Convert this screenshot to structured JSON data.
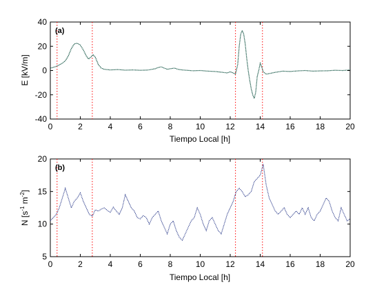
{
  "chart_data": [
    {
      "type": "line",
      "panel_label": "(a)",
      "xlabel": "Tiempo Local [h]",
      "ylabel": "E  [kV/m]",
      "xlim": [
        0,
        20
      ],
      "ylim": [
        -40,
        40
      ],
      "xticks": [
        0,
        2,
        4,
        6,
        8,
        10,
        12,
        14,
        16,
        18,
        20
      ],
      "yticks": [
        -40,
        -20,
        0,
        20,
        40
      ],
      "grid": false,
      "line_color": "#1a5a4a",
      "vlines": [
        0.45,
        2.8,
        12.35,
        14.15
      ],
      "vline_color": "#ff0000",
      "series": [
        {
          "x": [
            0,
            0.3,
            0.5,
            0.8,
            1.0,
            1.2,
            1.4,
            1.6,
            1.8,
            2.0,
            2.2,
            2.4,
            2.55,
            2.7,
            2.85,
            3.0,
            3.2,
            3.4,
            3.6,
            4.0,
            4.5,
            5.0,
            5.5,
            6.0,
            6.5,
            7.0,
            7.2,
            7.4,
            7.6,
            7.8,
            8.0,
            8.3,
            8.5,
            8.8,
            9.0,
            9.5,
            10.0,
            10.5,
            11.0,
            11.5,
            11.8,
            12.0,
            12.2,
            12.35,
            12.5,
            12.6,
            12.7,
            12.8,
            12.9,
            13.0,
            13.1,
            13.2,
            13.3,
            13.4,
            13.5,
            13.6,
            13.7,
            13.8,
            13.9,
            14.0,
            14.1,
            14.2,
            14.3,
            14.4,
            14.6,
            14.8,
            15.0,
            15.5,
            16.0,
            16.5,
            17.0,
            17.5,
            18.0,
            18.5,
            19.0,
            19.5,
            20.0
          ],
          "y": [
            2,
            3,
            4,
            6,
            8,
            12,
            18,
            22,
            22.5,
            21,
            17,
            12,
            9.5,
            11,
            13,
            11,
            5,
            2,
            1,
            0.5,
            0.8,
            0.3,
            0.5,
            0.2,
            0.4,
            1.5,
            2.5,
            3,
            2,
            1,
            1.5,
            2,
            1,
            0.5,
            0.3,
            -0.2,
            0,
            -0.5,
            -0.8,
            -1.5,
            -2,
            -1,
            -2,
            -3,
            5,
            20,
            30,
            33,
            30,
            22,
            10,
            0,
            -8,
            -15,
            -20,
            -23,
            -18,
            -5,
            0,
            6,
            3,
            -1,
            -2,
            -3,
            -2.5,
            -2,
            -1.5,
            -0.5,
            -0.8,
            -0.3,
            0,
            -0.5,
            -0.3,
            -0.2,
            0.2,
            0,
            0.5
          ]
        }
      ]
    },
    {
      "type": "line",
      "panel_label": "(b)",
      "xlabel": "Tiempo Local [h]",
      "ylabel_main": "N  [s",
      "ylabel_sup1": "-1",
      "ylabel_mid": " m",
      "ylabel_sup2": "-2",
      "ylabel_end": "]",
      "xlim": [
        0,
        20
      ],
      "ylim": [
        5,
        20
      ],
      "xticks": [
        0,
        2,
        4,
        6,
        8,
        10,
        12,
        14,
        16,
        18,
        20
      ],
      "yticks": [
        5,
        10,
        15,
        20
      ],
      "grid": false,
      "line_color": "#2a3a8a",
      "vlines": [
        0.45,
        2.8,
        12.35,
        14.15
      ],
      "vline_color": "#ff0000",
      "series": [
        {
          "x": [
            0,
            0.2,
            0.4,
            0.6,
            0.8,
            1.0,
            1.2,
            1.4,
            1.6,
            1.8,
            2.0,
            2.2,
            2.4,
            2.6,
            2.8,
            3.0,
            3.2,
            3.4,
            3.6,
            3.8,
            4.0,
            4.2,
            4.4,
            4.6,
            4.8,
            5.0,
            5.2,
            5.4,
            5.6,
            5.8,
            6.0,
            6.2,
            6.4,
            6.6,
            6.8,
            7.0,
            7.2,
            7.4,
            7.6,
            7.8,
            8.0,
            8.2,
            8.4,
            8.6,
            8.8,
            9.0,
            9.2,
            9.4,
            9.6,
            9.8,
            10.0,
            10.2,
            10.4,
            10.6,
            10.8,
            11.0,
            11.2,
            11.4,
            11.6,
            11.8,
            12.0,
            12.2,
            12.4,
            12.6,
            12.8,
            13.0,
            13.2,
            13.4,
            13.6,
            13.8,
            14.0,
            14.2,
            14.4,
            14.6,
            14.8,
            15.0,
            15.2,
            15.4,
            15.6,
            15.8,
            16.0,
            16.2,
            16.4,
            16.6,
            16.8,
            17.0,
            17.2,
            17.4,
            17.6,
            17.8,
            18.0,
            18.2,
            18.4,
            18.6,
            18.8,
            19.0,
            19.2,
            19.4,
            19.6,
            19.8,
            20.0
          ],
          "y": [
            10.5,
            11,
            11.5,
            12.5,
            14,
            15.5,
            14,
            12.5,
            13.5,
            14,
            14.8,
            13.5,
            12.5,
            11.5,
            11.2,
            12.2,
            12,
            12.3,
            12.5,
            12.1,
            11.8,
            12.6,
            12,
            11.5,
            12.5,
            14.5,
            13.5,
            12.5,
            12,
            11,
            10.8,
            11.3,
            11,
            10,
            11,
            11.5,
            12,
            10.5,
            9.5,
            8.5,
            10,
            10.5,
            9,
            8,
            7.5,
            8.5,
            9.5,
            10.5,
            11,
            12.5,
            11.5,
            10,
            9,
            10.5,
            11,
            10,
            9,
            8.5,
            10,
            11.5,
            12.5,
            13.5,
            15,
            15.5,
            15,
            14.2,
            14.5,
            15,
            16.5,
            17,
            17.5,
            19.2,
            16,
            14,
            13,
            12,
            11.5,
            12,
            12.5,
            11.5,
            11,
            11.5,
            12,
            11.5,
            12.5,
            11.5,
            12.5,
            11,
            10.5,
            11.5,
            12,
            13,
            14,
            13.5,
            12,
            11,
            10.5,
            12.5,
            11.5,
            10.5,
            10.8
          ]
        }
      ]
    }
  ]
}
